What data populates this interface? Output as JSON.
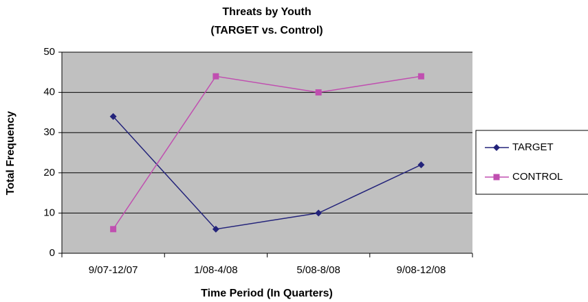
{
  "chart_data": {
    "type": "line",
    "title": "Threats by Youth",
    "subtitle": "(TARGET vs. Control)",
    "x_label": "Time Period (In Quarters)",
    "y_label": "Total Frequency",
    "categories": [
      "9/07-12/07",
      "1/08-4/08",
      "5/08-8/08",
      "9/08-12/08"
    ],
    "series": [
      {
        "name": "TARGET",
        "color": "#23237a",
        "marker": "diamond",
        "values": [
          34,
          6,
          10,
          22
        ]
      },
      {
        "name": "CONTROL",
        "color": "#c04fb0",
        "marker": "square",
        "values": [
          6,
          44,
          40,
          44
        ]
      }
    ],
    "ylim": [
      0,
      50
    ],
    "yticks": [
      0,
      10,
      20,
      30,
      40,
      50
    ],
    "grid": true,
    "plot_background": "#c0c0c0",
    "legend": "right"
  }
}
